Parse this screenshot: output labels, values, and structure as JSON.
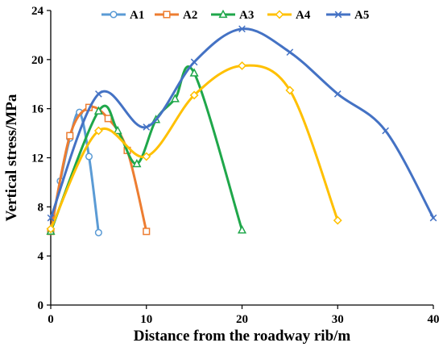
{
  "chart_data": {
    "type": "line",
    "xlabel": "Distance from the roadway rib/m",
    "ylabel": "Vertical stress/MPa",
    "xlim": [
      0,
      40
    ],
    "ylim": [
      0,
      24
    ],
    "x_ticks": [
      "0",
      "10",
      "20",
      "30",
      "40"
    ],
    "y_ticks": [
      "0",
      "4",
      "8",
      "12",
      "16",
      "20",
      "24"
    ],
    "grid": false,
    "legend_position": "top",
    "smooth": true,
    "series": [
      {
        "name": "A1",
        "color": "#5B9BD5",
        "marker": "circle",
        "x": [
          0,
          1,
          2,
          3,
          4,
          5
        ],
        "y": [
          6.0,
          10.1,
          13.6,
          15.7,
          12.1,
          5.9
        ]
      },
      {
        "name": "A2",
        "color": "#ED7D31",
        "marker": "square",
        "x": [
          0,
          2,
          4,
          6,
          8,
          10
        ],
        "y": [
          6.0,
          13.8,
          16.1,
          15.2,
          12.6,
          6.0
        ]
      },
      {
        "name": "A3",
        "color": "#1FA74A",
        "marker": "triangle",
        "x": [
          0,
          5,
          7,
          9,
          11,
          13,
          15,
          20
        ],
        "y": [
          6.0,
          15.8,
          14.2,
          11.5,
          15.1,
          16.8,
          18.9,
          6.1
        ]
      },
      {
        "name": "A4",
        "color": "#FFC000",
        "marker": "diamond",
        "x": [
          0,
          5,
          10,
          15,
          20,
          25,
          30
        ],
        "y": [
          6.2,
          14.2,
          12.1,
          17.1,
          19.5,
          17.5,
          6.9
        ]
      },
      {
        "name": "A5",
        "color": "#4472C4",
        "marker": "x",
        "x": [
          0,
          5,
          10,
          15,
          20,
          25,
          30,
          35,
          40
        ],
        "y": [
          7.1,
          17.2,
          14.5,
          19.8,
          22.5,
          20.6,
          17.2,
          14.2,
          7.1
        ]
      }
    ]
  }
}
